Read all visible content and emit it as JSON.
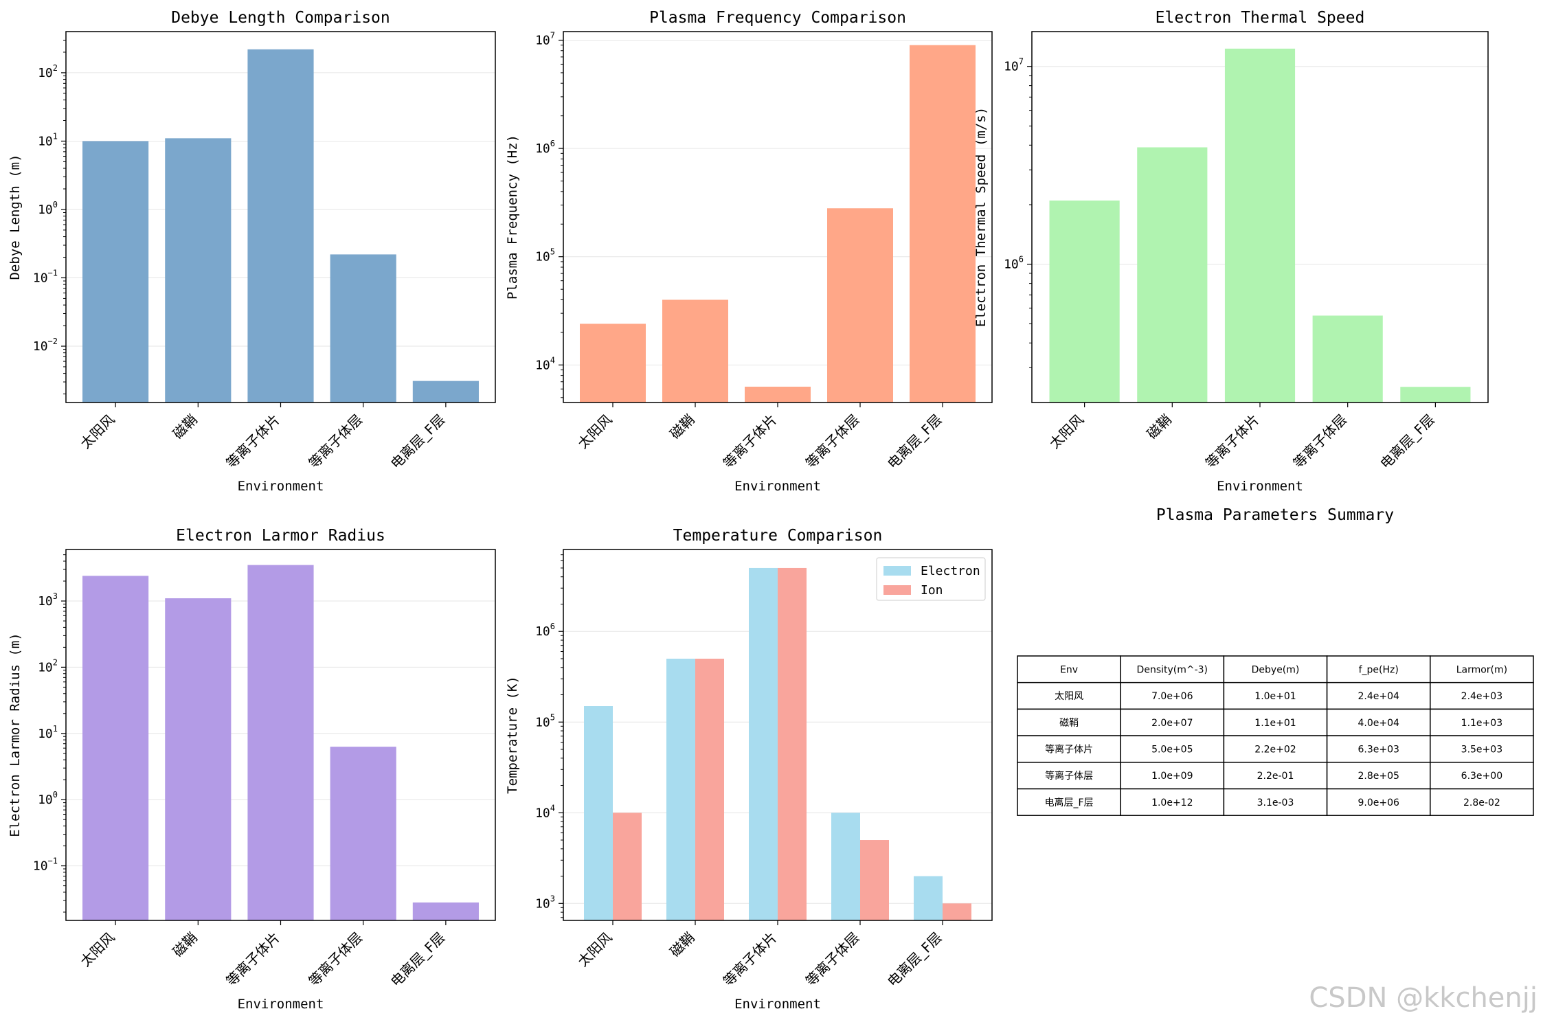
{
  "chart_data": [
    {
      "type": "bar",
      "title": "Debye Length Comparison",
      "xlabel": "Environment",
      "ylabel": "Debye Length (m)",
      "yscale": "log",
      "ylim": [
        0.0015,
        400
      ],
      "categories": [
        "太阳风",
        "磁鞘",
        "等离子体片",
        "等离子体层",
        "电离层_F层"
      ],
      "values": [
        10.0,
        11.0,
        220.0,
        0.22,
        0.0031
      ],
      "yticks": [
        {
          "base": "10",
          "exp": "2",
          "v": 100
        },
        {
          "base": "10",
          "exp": "1",
          "v": 10
        },
        {
          "base": "10",
          "exp": "0",
          "v": 1
        },
        {
          "base": "10",
          "exp": "−1",
          "v": 0.1
        },
        {
          "base": "10",
          "exp": "−2",
          "v": 0.01
        }
      ],
      "color": "#7ba7cc",
      "grid": true
    },
    {
      "type": "bar",
      "title": "Plasma Frequency Comparison",
      "xlabel": "Environment",
      "ylabel": "Plasma Frequency (Hz)",
      "yscale": "log",
      "ylim": [
        4500,
        12000000
      ],
      "categories": [
        "太阳风",
        "磁鞘",
        "等离子体片",
        "等离子体层",
        "电离层_F层"
      ],
      "values": [
        24000,
        40000,
        6300,
        280000,
        9000000
      ],
      "yticks": [
        {
          "base": "10",
          "exp": "7",
          "v": 10000000
        },
        {
          "base": "10",
          "exp": "6",
          "v": 1000000
        },
        {
          "base": "10",
          "exp": "5",
          "v": 100000
        },
        {
          "base": "10",
          "exp": "4",
          "v": 10000
        }
      ],
      "color": "#ffa788",
      "grid": true
    },
    {
      "type": "bar",
      "title": "Electron Thermal Speed",
      "xlabel": "Environment",
      "ylabel": "Electron Thermal Speed (m/s)",
      "yscale": "log",
      "ylim": [
        200000,
        15000000
      ],
      "categories": [
        "太阳风",
        "磁鞘",
        "等离子体片",
        "等离子体层",
        "电离层_F层"
      ],
      "values": [
        2100000,
        3900000,
        12300000,
        550000,
        240000
      ],
      "yticks": [
        {
          "base": "10",
          "exp": "7",
          "v": 10000000
        },
        {
          "base": "10",
          "exp": "6",
          "v": 1000000
        }
      ],
      "color": "#b0f3b0",
      "grid": true
    },
    {
      "type": "bar",
      "title": "Electron Larmor Radius",
      "xlabel": "Environment",
      "ylabel": "Electron Larmor Radius (m)",
      "yscale": "log",
      "ylim": [
        0.015,
        6000
      ],
      "categories": [
        "太阳风",
        "磁鞘",
        "等离子体片",
        "等离子体层",
        "电离层_F层"
      ],
      "values": [
        2400,
        1100,
        3500,
        6.3,
        0.028
      ],
      "yticks": [
        {
          "base": "10",
          "exp": "3",
          "v": 1000
        },
        {
          "base": "10",
          "exp": "2",
          "v": 100
        },
        {
          "base": "10",
          "exp": "1",
          "v": 10
        },
        {
          "base": "10",
          "exp": "0",
          "v": 1
        },
        {
          "base": "10",
          "exp": "−1",
          "v": 0.1
        }
      ],
      "color": "#b39be6",
      "grid": true
    },
    {
      "type": "bar",
      "title": "Temperature Comparison",
      "xlabel": "Environment",
      "ylabel": "Temperature (K)",
      "yscale": "log",
      "ylim": [
        650,
        8000000
      ],
      "categories": [
        "太阳风",
        "磁鞘",
        "等离子体片",
        "等离子体层",
        "电离层_F层"
      ],
      "series": [
        {
          "name": "Electron",
          "values": [
            150000,
            500000,
            5000000,
            10000,
            2000
          ],
          "color": "#a8dcef"
        },
        {
          "name": "Ion",
          "values": [
            10000,
            500000,
            5000000,
            5000,
            1000
          ],
          "color": "#f9a59c"
        }
      ],
      "yticks": [
        {
          "base": "10",
          "exp": "6",
          "v": 1000000
        },
        {
          "base": "10",
          "exp": "5",
          "v": 100000
        },
        {
          "base": "10",
          "exp": "4",
          "v": 10000
        },
        {
          "base": "10",
          "exp": "3",
          "v": 1000
        }
      ],
      "legend": "top-right",
      "grid": true
    },
    {
      "type": "table",
      "title": "Plasma Parameters Summary",
      "columns": [
        "Env",
        "Density(m^-3)",
        "Debye(m)",
        "f_pe(Hz)",
        "Larmor(m)"
      ],
      "rows": [
        [
          "太阳风",
          "7.0e+06",
          "1.0e+01",
          "2.4e+04",
          "2.4e+03"
        ],
        [
          "磁鞘",
          "2.0e+07",
          "1.1e+01",
          "4.0e+04",
          "1.1e+03"
        ],
        [
          "等离子体片",
          "5.0e+05",
          "2.2e+02",
          "6.3e+03",
          "3.5e+03"
        ],
        [
          "等离子体层",
          "1.0e+09",
          "2.2e-01",
          "2.8e+05",
          "6.3e+00"
        ],
        [
          "电离层_F层",
          "1.0e+12",
          "3.1e-03",
          "9.0e+06",
          "2.8e-02"
        ]
      ]
    }
  ],
  "watermark": "CSDN @kkchenjj"
}
